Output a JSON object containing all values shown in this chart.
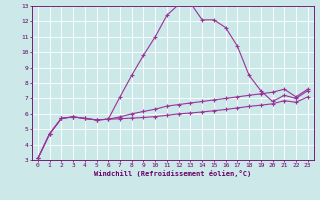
{
  "bg_color": "#cce8e8",
  "grid_color": "#ffffff",
  "line_color": "#993399",
  "xlabel": "Windchill (Refroidissement éolien,°C)",
  "xlabel_color": "#660066",
  "tick_color": "#660066",
  "xlim": [
    -0.5,
    23.5
  ],
  "ylim": [
    3,
    13
  ],
  "xticks": [
    0,
    1,
    2,
    3,
    4,
    5,
    6,
    7,
    8,
    9,
    10,
    11,
    12,
    13,
    14,
    15,
    16,
    17,
    18,
    19,
    20,
    21,
    22,
    23
  ],
  "yticks": [
    3,
    4,
    5,
    6,
    7,
    8,
    9,
    10,
    11,
    12,
    13
  ],
  "curve1_x": [
    0,
    1,
    2,
    3,
    4,
    5,
    6,
    7,
    8,
    9,
    10,
    11,
    12,
    13,
    14,
    15,
    16,
    17,
    18,
    19,
    20,
    21,
    22,
    23
  ],
  "curve1_y": [
    3.1,
    4.7,
    5.7,
    5.8,
    5.7,
    5.6,
    5.65,
    7.1,
    8.5,
    9.8,
    11.0,
    12.4,
    13.1,
    13.2,
    12.1,
    12.1,
    11.6,
    10.4,
    8.5,
    7.5,
    6.8,
    7.2,
    7.0,
    7.5
  ],
  "curve2_x": [
    0,
    1,
    2,
    3,
    4,
    5,
    6,
    7,
    8,
    9,
    10,
    11,
    12,
    13,
    14,
    15,
    16,
    17,
    18,
    19,
    20,
    21,
    22,
    23
  ],
  "curve2_y": [
    3.1,
    4.7,
    5.7,
    5.8,
    5.7,
    5.6,
    5.65,
    5.8,
    6.0,
    6.15,
    6.3,
    6.5,
    6.6,
    6.7,
    6.8,
    6.9,
    7.0,
    7.1,
    7.2,
    7.3,
    7.4,
    7.6,
    7.1,
    7.6
  ],
  "curve3_x": [
    0,
    1,
    2,
    3,
    4,
    5,
    6,
    7,
    8,
    9,
    10,
    11,
    12,
    13,
    14,
    15,
    16,
    17,
    18,
    19,
    20,
    21,
    22,
    23
  ],
  "curve3_y": [
    3.1,
    4.7,
    5.7,
    5.8,
    5.7,
    5.6,
    5.65,
    5.68,
    5.72,
    5.76,
    5.82,
    5.9,
    6.0,
    6.05,
    6.12,
    6.2,
    6.28,
    6.38,
    6.48,
    6.56,
    6.65,
    6.85,
    6.75,
    7.1
  ],
  "figsize": [
    3.2,
    2.0
  ],
  "dpi": 100
}
